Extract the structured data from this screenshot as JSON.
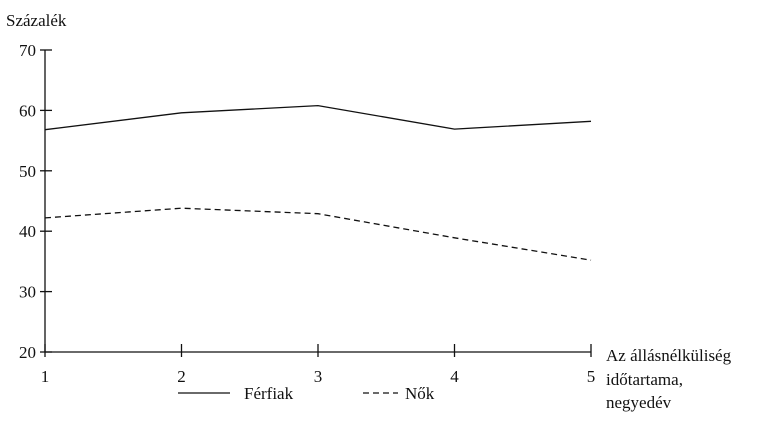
{
  "chart_data": {
    "type": "line",
    "ylabel": "Százalék",
    "xlabel_lines": [
      "Az állásnélküliség",
      "időtartama,",
      "negyedév"
    ],
    "x": [
      1,
      2,
      3,
      4,
      5
    ],
    "x_tick_labels": [
      "1",
      "2",
      "3",
      "4",
      "5"
    ],
    "ylim": [
      20,
      70
    ],
    "y_ticks": [
      20,
      30,
      40,
      50,
      60,
      70
    ],
    "y_tick_labels": [
      "20",
      "30",
      "40",
      "50",
      "60",
      "70"
    ],
    "grid": false,
    "legend_position": "bottom",
    "series": [
      {
        "name": "Férfiak",
        "values": [
          56.8,
          59.6,
          60.8,
          56.9,
          58.2
        ],
        "style": "solid"
      },
      {
        "name": "Nők",
        "values": [
          42.2,
          43.8,
          42.9,
          38.9,
          35.2
        ],
        "style": "dashed"
      }
    ]
  }
}
